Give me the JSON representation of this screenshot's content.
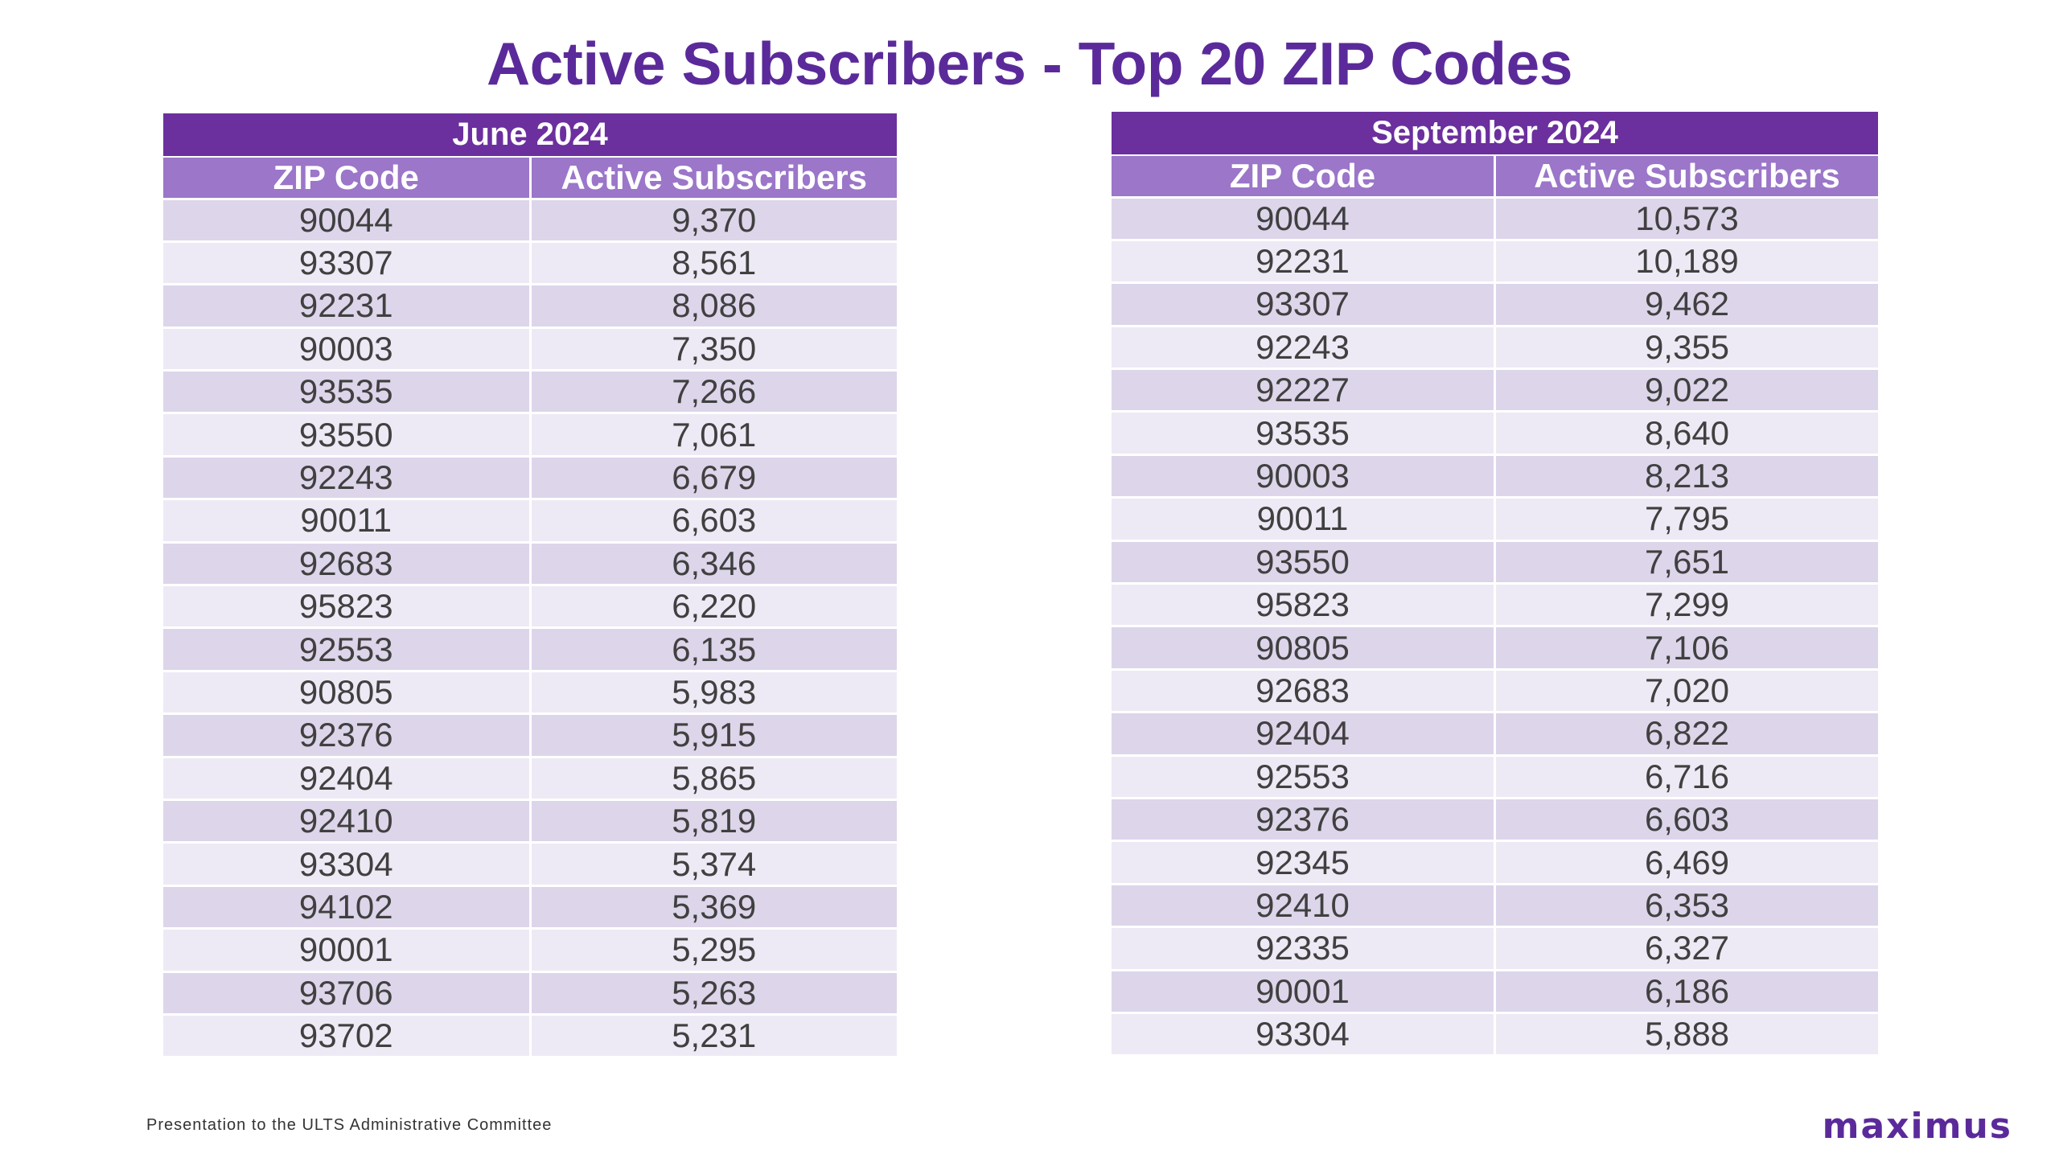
{
  "title": "Active Subscribers - Top 20 ZIP Codes",
  "columns": {
    "zip": "ZIP Code",
    "subs": "Active Subscribers"
  },
  "tables": [
    {
      "period": "June 2024",
      "rows": [
        {
          "zip": "90044",
          "subs": "9,370"
        },
        {
          "zip": "93307",
          "subs": "8,561"
        },
        {
          "zip": "92231",
          "subs": "8,086"
        },
        {
          "zip": "90003",
          "subs": "7,350"
        },
        {
          "zip": "93535",
          "subs": "7,266"
        },
        {
          "zip": "93550",
          "subs": "7,061"
        },
        {
          "zip": "92243",
          "subs": "6,679"
        },
        {
          "zip": "90011",
          "subs": "6,603"
        },
        {
          "zip": "92683",
          "subs": "6,346"
        },
        {
          "zip": "95823",
          "subs": "6,220"
        },
        {
          "zip": "92553",
          "subs": "6,135"
        },
        {
          "zip": "90805",
          "subs": "5,983"
        },
        {
          "zip": "92376",
          "subs": "5,915"
        },
        {
          "zip": "92404",
          "subs": "5,865"
        },
        {
          "zip": "92410",
          "subs": "5,819"
        },
        {
          "zip": "93304",
          "subs": "5,374"
        },
        {
          "zip": "94102",
          "subs": "5,369"
        },
        {
          "zip": "90001",
          "subs": "5,295"
        },
        {
          "zip": "93706",
          "subs": "5,263"
        },
        {
          "zip": "93702",
          "subs": "5,231"
        }
      ]
    },
    {
      "period": "September 2024",
      "rows": [
        {
          "zip": "90044",
          "subs": "10,573"
        },
        {
          "zip": "92231",
          "subs": "10,189"
        },
        {
          "zip": "93307",
          "subs": "9,462"
        },
        {
          "zip": "92243",
          "subs": "9,355"
        },
        {
          "zip": "92227",
          "subs": "9,022"
        },
        {
          "zip": "93535",
          "subs": "8,640"
        },
        {
          "zip": "90003",
          "subs": "8,213"
        },
        {
          "zip": "90011",
          "subs": "7,795"
        },
        {
          "zip": "93550",
          "subs": "7,651"
        },
        {
          "zip": "95823",
          "subs": "7,299"
        },
        {
          "zip": "90805",
          "subs": "7,106"
        },
        {
          "zip": "92683",
          "subs": "7,020"
        },
        {
          "zip": "92404",
          "subs": "6,822"
        },
        {
          "zip": "92553",
          "subs": "6,716"
        },
        {
          "zip": "92376",
          "subs": "6,603"
        },
        {
          "zip": "92345",
          "subs": "6,469"
        },
        {
          "zip": "92410",
          "subs": "6,353"
        },
        {
          "zip": "92335",
          "subs": "6,327"
        },
        {
          "zip": "90001",
          "subs": "6,186"
        },
        {
          "zip": "93304",
          "subs": "5,888"
        }
      ]
    }
  ],
  "footer": "Presentation to the ULTS Administrative Committee",
  "logo_text": "maximus",
  "colors": {
    "brand_purple": "#5b2a9a",
    "header_dark": "#6b2f9e",
    "header_light": "#9b76c9",
    "row_odd": "#ddd5ea",
    "row_even": "#eeeaf5"
  }
}
